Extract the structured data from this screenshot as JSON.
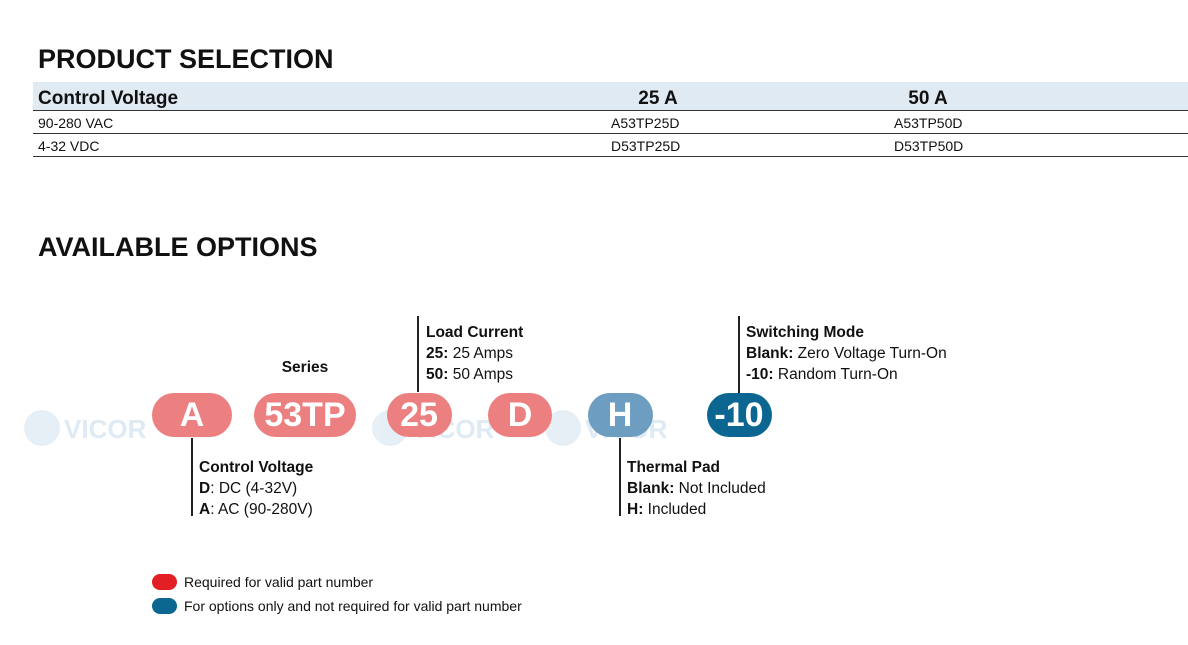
{
  "product_selection": {
    "title": "PRODUCT SELECTION",
    "header": [
      "Control Voltage",
      "25 A",
      "50 A"
    ],
    "rows": [
      [
        "90-280 VAC",
        "A53TP25D",
        "A53TP50D"
      ],
      [
        "4-32 VDC",
        "D53TP25D",
        "D53TP50D"
      ]
    ]
  },
  "available_options": {
    "title": "AVAILABLE OPTIONS",
    "watermark": "VICOR",
    "segments": [
      "A",
      "53TP",
      "25",
      "D",
      "H",
      "-10"
    ],
    "series_label": "Series",
    "load_current": {
      "title": "Load Current",
      "lines": [
        {
          "key": "25:",
          "text": " 25 Amps"
        },
        {
          "key": "50:",
          "text": " 50 Amps"
        }
      ]
    },
    "switching_mode": {
      "title": "Switching Mode",
      "lines": [
        {
          "key": "Blank:",
          "text": " Zero Voltage Turn-On"
        },
        {
          "key": "-10:",
          "text": " Random Turn-On"
        }
      ]
    },
    "control_voltage": {
      "title": "Control Voltage",
      "lines": [
        {
          "key": "D",
          "text": ": DC (4-32V)"
        },
        {
          "key": "A",
          "text": ": AC (90-280V)"
        }
      ]
    },
    "thermal_pad": {
      "title": "Thermal Pad",
      "lines": [
        {
          "key": "Blank:",
          "text": " Not Included"
        },
        {
          "key": "H:",
          "text": " Included"
        }
      ]
    },
    "legend": [
      "Required for valid part number",
      "For options only and not required for valid part number"
    ]
  }
}
